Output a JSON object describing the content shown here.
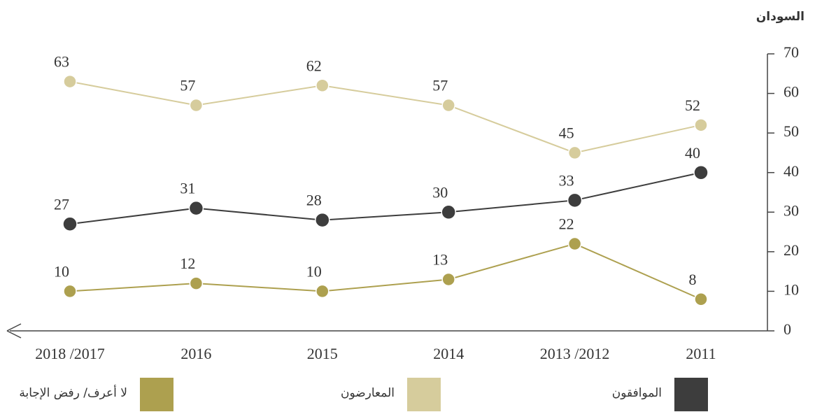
{
  "chart_data": {
    "type": "line",
    "title": "السودان",
    "categories": [
      "2011",
      "2013 /2012",
      "2014",
      "2015",
      "2016",
      "2018 /2017"
    ],
    "series": [
      {
        "name": "الموافقون",
        "color": "#3d3d3d",
        "values": [
          40,
          33,
          30,
          28,
          31,
          27
        ]
      },
      {
        "name": "المعارضون",
        "color": "#d6cc9c",
        "values": [
          52,
          45,
          57,
          62,
          57,
          63
        ]
      },
      {
        "name": "لا أعرف/ رفض الإجابة",
        "color": "#ada04f",
        "values": [
          8,
          22,
          13,
          10,
          12,
          10
        ]
      }
    ],
    "ylim": [
      0,
      70
    ],
    "yticks": [
      0,
      10,
      20,
      30,
      40,
      50,
      60,
      70
    ]
  }
}
